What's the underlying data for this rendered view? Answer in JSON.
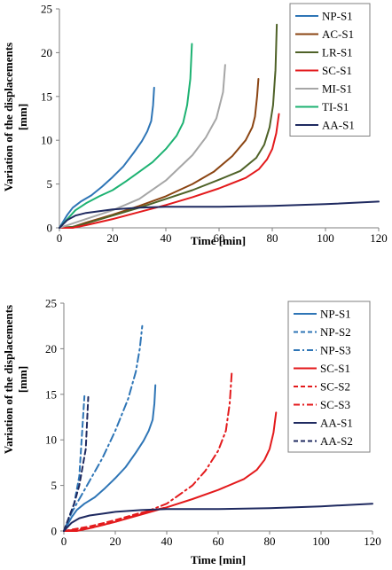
{
  "chart_data": [
    {
      "type": "line",
      "xlabel": "Time [min]",
      "ylabel": "Variation of the displacements [mm]",
      "xlim": [
        0,
        120
      ],
      "ylim": [
        0,
        25
      ],
      "xticks": [
        "0",
        "20",
        "40",
        "60",
        "80",
        "100",
        "120"
      ],
      "yticks": [
        "0",
        "5",
        "10",
        "15",
        "20",
        "25"
      ],
      "grid": false,
      "legend_position": "top-right",
      "series": [
        {
          "name": "NP-S1",
          "color": "#2e75b6",
          "style": "solid",
          "x": [
            0,
            3,
            5,
            8,
            12,
            16,
            20,
            24,
            28,
            31,
            33,
            34.5,
            35.2,
            35.6
          ],
          "y": [
            0,
            1.5,
            2.3,
            3.0,
            3.7,
            4.7,
            5.8,
            7.0,
            8.6,
            9.9,
            11.0,
            12.2,
            14.0,
            16.0
          ]
        },
        {
          "name": "AC-S1",
          "color": "#8b4513",
          "style": "solid",
          "x": [
            0,
            5,
            10,
            20,
            30,
            40,
            50,
            58,
            65,
            70,
            72.5,
            73.5,
            74.3,
            74.8
          ],
          "y": [
            0,
            0.1,
            0.6,
            1.5,
            2.5,
            3.6,
            5.0,
            6.4,
            8.2,
            10.0,
            11.5,
            12.7,
            15.0,
            17.0
          ]
        },
        {
          "name": "LR-S1",
          "color": "#4f6228",
          "style": "solid",
          "x": [
            0,
            5,
            10,
            20,
            30,
            40,
            50,
            60,
            68,
            74,
            77,
            79,
            80.3,
            81.2,
            81.7
          ],
          "y": [
            0,
            0.1,
            0.5,
            1.4,
            2.3,
            3.3,
            4.3,
            5.5,
            6.5,
            8.0,
            9.5,
            11.5,
            14.0,
            18.0,
            23.2
          ]
        },
        {
          "name": "SC-S1",
          "color": "#e31a1c",
          "style": "solid",
          "x": [
            0,
            5,
            10,
            20,
            30,
            40,
            50,
            60,
            70,
            75,
            78,
            80,
            81.5,
            82.5
          ],
          "y": [
            0,
            0.0,
            0.3,
            1.0,
            1.8,
            2.6,
            3.5,
            4.5,
            5.7,
            6.7,
            7.8,
            9.0,
            10.8,
            13.0
          ]
        },
        {
          "name": "MI-S1",
          "color": "#a6a6a6",
          "style": "solid",
          "x": [
            0,
            5,
            10,
            20,
            30,
            40,
            50,
            55,
            59,
            61.5,
            62.3
          ],
          "y": [
            0,
            0.5,
            1.0,
            2.0,
            3.3,
            5.4,
            8.3,
            10.3,
            12.5,
            15.5,
            18.6
          ]
        },
        {
          "name": "TI-S1",
          "color": "#1db272",
          "style": "solid",
          "x": [
            0,
            3,
            6,
            10,
            15,
            20,
            25,
            30,
            35,
            40,
            44,
            46.5,
            48,
            49.2,
            49.8
          ],
          "y": [
            0,
            1.0,
            2.0,
            2.8,
            3.6,
            4.3,
            5.3,
            6.4,
            7.5,
            9.0,
            10.5,
            12.0,
            14.0,
            17.0,
            21.0
          ]
        },
        {
          "name": "AA-S1",
          "color": "#1f2a60",
          "style": "solid",
          "x": [
            0,
            3,
            6,
            10,
            15,
            20,
            30,
            40,
            60,
            80,
            100,
            120
          ],
          "y": [
            0,
            0.9,
            1.4,
            1.7,
            1.9,
            2.1,
            2.3,
            2.4,
            2.4,
            2.5,
            2.7,
            3.0
          ]
        }
      ]
    },
    {
      "type": "line",
      "xlabel": "Time [min]",
      "ylabel": "Variation of the displacements [mm]",
      "xlim": [
        0,
        120
      ],
      "ylim": [
        0,
        25
      ],
      "xticks": [
        "0",
        "20",
        "40",
        "60",
        "80",
        "100",
        "120"
      ],
      "yticks": [
        "0",
        "5",
        "10",
        "15",
        "20",
        "25"
      ],
      "grid": false,
      "legend_position": "top-right",
      "series": [
        {
          "name": "NP-S1",
          "color": "#2e75b6",
          "style": "solid",
          "x": [
            0,
            3,
            5,
            8,
            12,
            16,
            20,
            24,
            28,
            31,
            33,
            34.5,
            35.2,
            35.6
          ],
          "y": [
            0,
            1.5,
            2.3,
            3.0,
            3.7,
            4.7,
            5.8,
            7.0,
            8.6,
            9.9,
            11.0,
            12.2,
            14.0,
            16.0
          ]
        },
        {
          "name": "NP-S2",
          "color": "#2e75b6",
          "style": "dash",
          "x": [
            0,
            2,
            4,
            6,
            8
          ],
          "y": [
            0,
            1.5,
            3.0,
            6.0,
            14.8
          ]
        },
        {
          "name": "NP-S3",
          "color": "#2e75b6",
          "style": "dashdot",
          "x": [
            0,
            3,
            6,
            10,
            15,
            20,
            25,
            28,
            29.5,
            30.5
          ],
          "y": [
            0,
            2.0,
            3.5,
            5.5,
            8.0,
            11.0,
            14.5,
            17.5,
            20.0,
            22.5
          ]
        },
        {
          "name": "SC-S1",
          "color": "#e31a1c",
          "style": "solid",
          "x": [
            0,
            5,
            10,
            20,
            30,
            40,
            50,
            60,
            70,
            75,
            78,
            80,
            81.5,
            82.5
          ],
          "y": [
            0,
            0.0,
            0.3,
            1.0,
            1.8,
            2.6,
            3.5,
            4.5,
            5.7,
            6.7,
            7.8,
            9.0,
            10.8,
            13.0
          ]
        },
        {
          "name": "SC-S2",
          "color": "#e31a1c",
          "style": "dash",
          "x": [
            0,
            10,
            20,
            30,
            40
          ],
          "y": [
            0,
            0.5,
            1.2,
            2.0,
            2.6
          ]
        },
        {
          "name": "SC-S3",
          "color": "#e31a1c",
          "style": "dashdot",
          "x": [
            0,
            10,
            20,
            30,
            40,
            50,
            55,
            60,
            63,
            64.5,
            65.3
          ],
          "y": [
            0,
            0.3,
            1.0,
            1.9,
            3.0,
            5.0,
            6.6,
            8.8,
            11.0,
            14.0,
            17.5
          ]
        },
        {
          "name": "AA-S1",
          "color": "#1f2a60",
          "style": "solid",
          "x": [
            0,
            3,
            6,
            10,
            15,
            20,
            30,
            40,
            60,
            80,
            100,
            120
          ],
          "y": [
            0,
            0.9,
            1.4,
            1.7,
            1.9,
            2.1,
            2.3,
            2.4,
            2.4,
            2.5,
            2.7,
            3.0
          ]
        },
        {
          "name": "AA-S2",
          "color": "#1f2a60",
          "style": "dash",
          "x": [
            0,
            2,
            4,
            6,
            8.5,
            9.5
          ],
          "y": [
            0,
            1.5,
            3.0,
            5.0,
            9.0,
            14.7
          ]
        }
      ]
    }
  ]
}
